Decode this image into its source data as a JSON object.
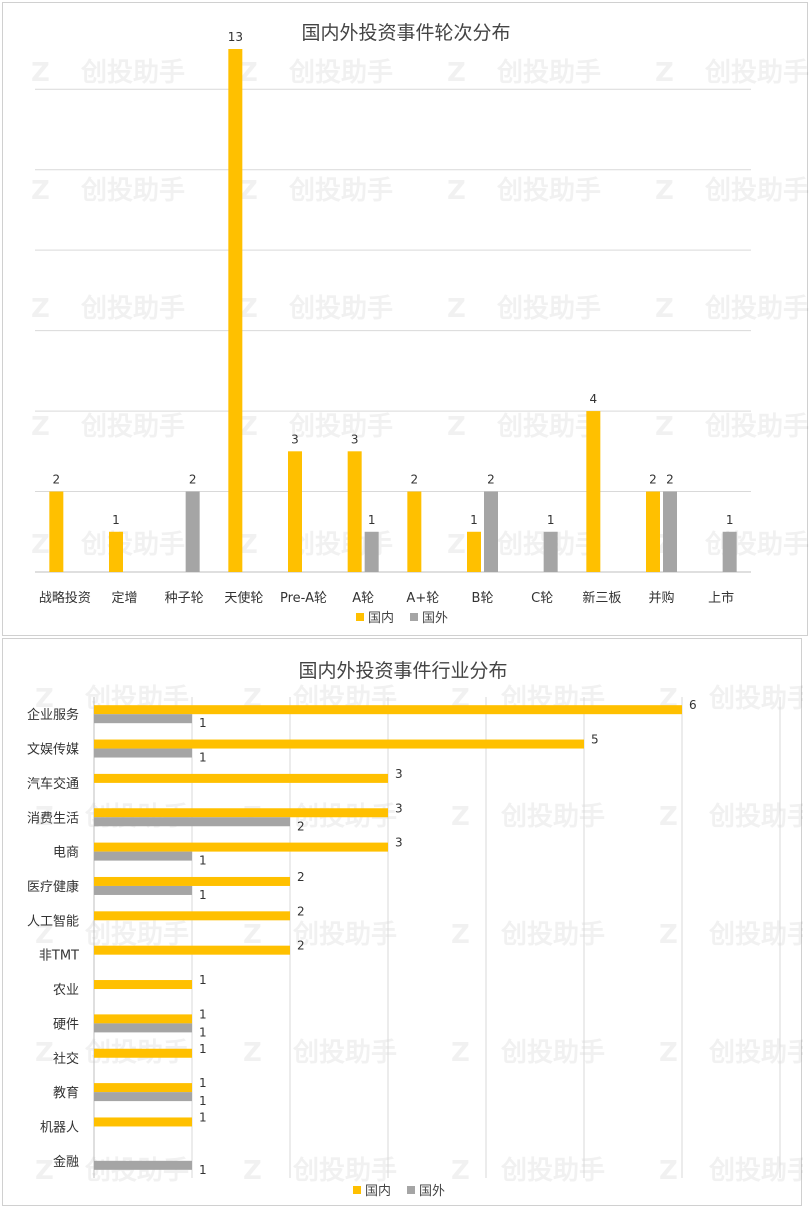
{
  "chart_data": [
    {
      "type": "bar",
      "orientation": "vertical",
      "title": "国内外投资事件轮次分布",
      "categories": [
        "战略投资",
        "定增",
        "种子轮",
        "天使轮",
        "Pre-A轮",
        "A轮",
        "A+轮",
        "B轮",
        "C轮",
        "新三板",
        "并购",
        "上市"
      ],
      "series": [
        {
          "name": "国内",
          "color": "#FFC000",
          "values": [
            2,
            1,
            0,
            13,
            3,
            3,
            2,
            1,
            0,
            4,
            2,
            0
          ]
        },
        {
          "name": "国外",
          "color": "#A5A5A5",
          "values": [
            0,
            0,
            2,
            0,
            0,
            1,
            0,
            2,
            1,
            0,
            2,
            1
          ]
        }
      ],
      "ylim": [
        0,
        13
      ],
      "grid": true,
      "legend": "bottom"
    },
    {
      "type": "bar",
      "orientation": "horizontal",
      "title": "国内外投资事件行业分布",
      "categories": [
        "企业服务",
        "文娱传媒",
        "汽车交通",
        "消费生活",
        "电商",
        "医疗健康",
        "人工智能",
        "非TMT",
        "农业",
        "硬件",
        "社交",
        "教育",
        "机器人",
        "金融"
      ],
      "series": [
        {
          "name": "国内",
          "color": "#FFC000",
          "values": [
            6,
            5,
            3,
            3,
            3,
            2,
            2,
            2,
            1,
            1,
            1,
            1,
            1,
            0
          ]
        },
        {
          "name": "国外",
          "color": "#A5A5A5",
          "values": [
            1,
            1,
            0,
            2,
            1,
            1,
            0,
            0,
            0,
            1,
            0,
            1,
            0,
            1
          ]
        }
      ],
      "xlim": [
        0,
        7
      ],
      "grid": true,
      "legend": "bottom"
    }
  ],
  "watermark": "创投助手"
}
